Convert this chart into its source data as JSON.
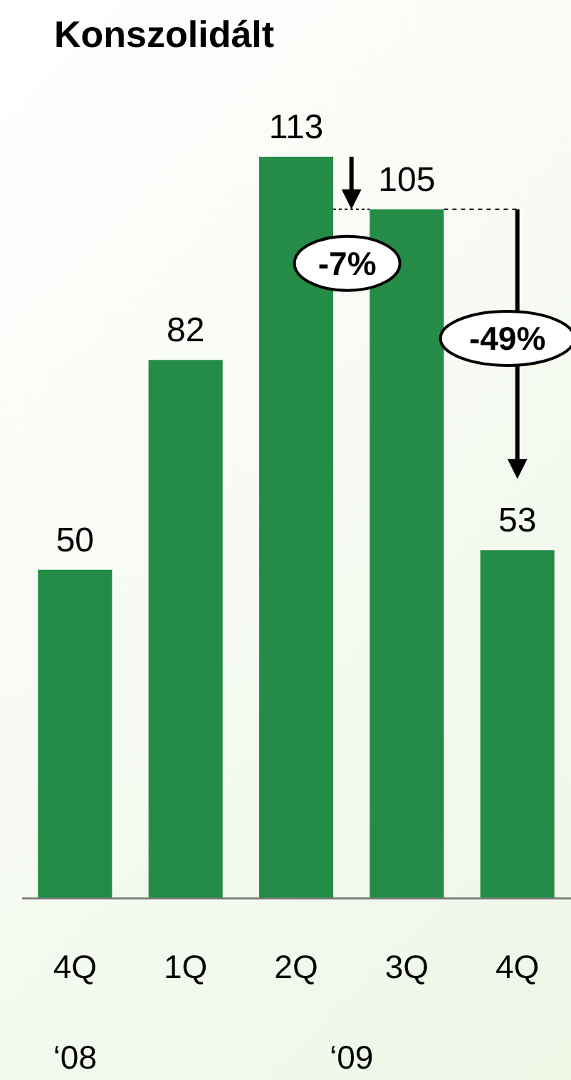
{
  "chart_data": {
    "type": "bar",
    "title": "Konszolidált",
    "categories": [
      "4Q",
      "1Q",
      "2Q",
      "3Q",
      "4Q"
    ],
    "values": [
      50,
      82,
      113,
      105,
      53
    ],
    "color": "#248c47",
    "data_labels": true,
    "grid": false,
    "annotations": [
      "-7%",
      "-49%",
      "‘08",
      "‘09"
    ]
  }
}
